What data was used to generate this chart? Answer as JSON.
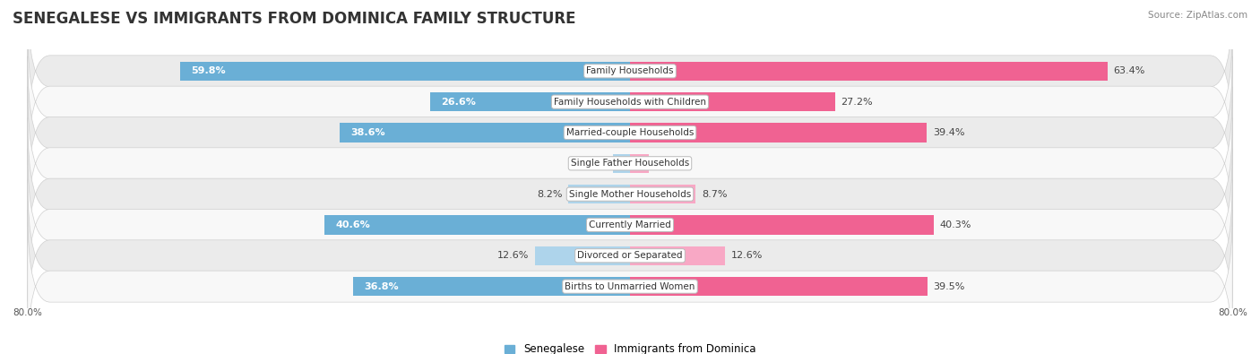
{
  "title": "SENEGALESE VS IMMIGRANTS FROM DOMINICA FAMILY STRUCTURE",
  "source": "Source: ZipAtlas.com",
  "categories": [
    "Family Households",
    "Family Households with Children",
    "Married-couple Households",
    "Single Father Households",
    "Single Mother Households",
    "Currently Married",
    "Divorced or Separated",
    "Births to Unmarried Women"
  ],
  "senegalese": [
    59.8,
    26.6,
    38.6,
    2.3,
    8.2,
    40.6,
    12.6,
    36.8
  ],
  "dominica": [
    63.4,
    27.2,
    39.4,
    2.5,
    8.7,
    40.3,
    12.6,
    39.5
  ],
  "senegalese_color": "#6aafd6",
  "dominica_color": "#f06292",
  "senegalese_light": "#aed4eb",
  "dominica_light": "#f8a8c5",
  "axis_max": 80.0,
  "bar_height": 0.62,
  "row_bg_colors": [
    "#ebebeb",
    "#f8f8f8"
  ],
  "title_fontsize": 12,
  "value_fontsize": 8,
  "cat_fontsize": 7.5,
  "legend_fontsize": 8.5,
  "source_fontsize": 7.5,
  "axis_label_fontsize": 7.5
}
